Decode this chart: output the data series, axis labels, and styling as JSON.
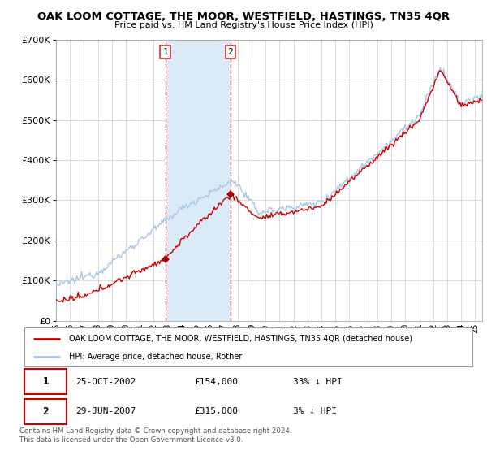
{
  "title": "OAK LOOM COTTAGE, THE MOOR, WESTFIELD, HASTINGS, TN35 4QR",
  "subtitle": "Price paid vs. HM Land Registry's House Price Index (HPI)",
  "legend_line1": "OAK LOOM COTTAGE, THE MOOR, WESTFIELD, HASTINGS, TN35 4QR (detached house)",
  "legend_line2": "HPI: Average price, detached house, Rother",
  "table_row1": [
    "1",
    "25-OCT-2002",
    "£154,000",
    "33% ↓ HPI"
  ],
  "table_row2": [
    "2",
    "29-JUN-2007",
    "£315,000",
    "3% ↓ HPI"
  ],
  "footer": "Contains HM Land Registry data © Crown copyright and database right 2024.\nThis data is licensed under the Open Government Licence v3.0.",
  "purchase1_date": 2002.82,
  "purchase1_price": 154000,
  "purchase2_date": 2007.49,
  "purchase2_price": 315000,
  "hpi_color": "#a8c8e8",
  "price_color": "#cc0000",
  "purchase_dot_color": "#aa0000",
  "shaded_region_color": "#daeaf7",
  "vline_color": "#cc3333",
  "ylim_max": 700000,
  "xlim_start": 1995.0,
  "xlim_end": 2025.5,
  "fig_width": 6.0,
  "fig_height": 5.6
}
